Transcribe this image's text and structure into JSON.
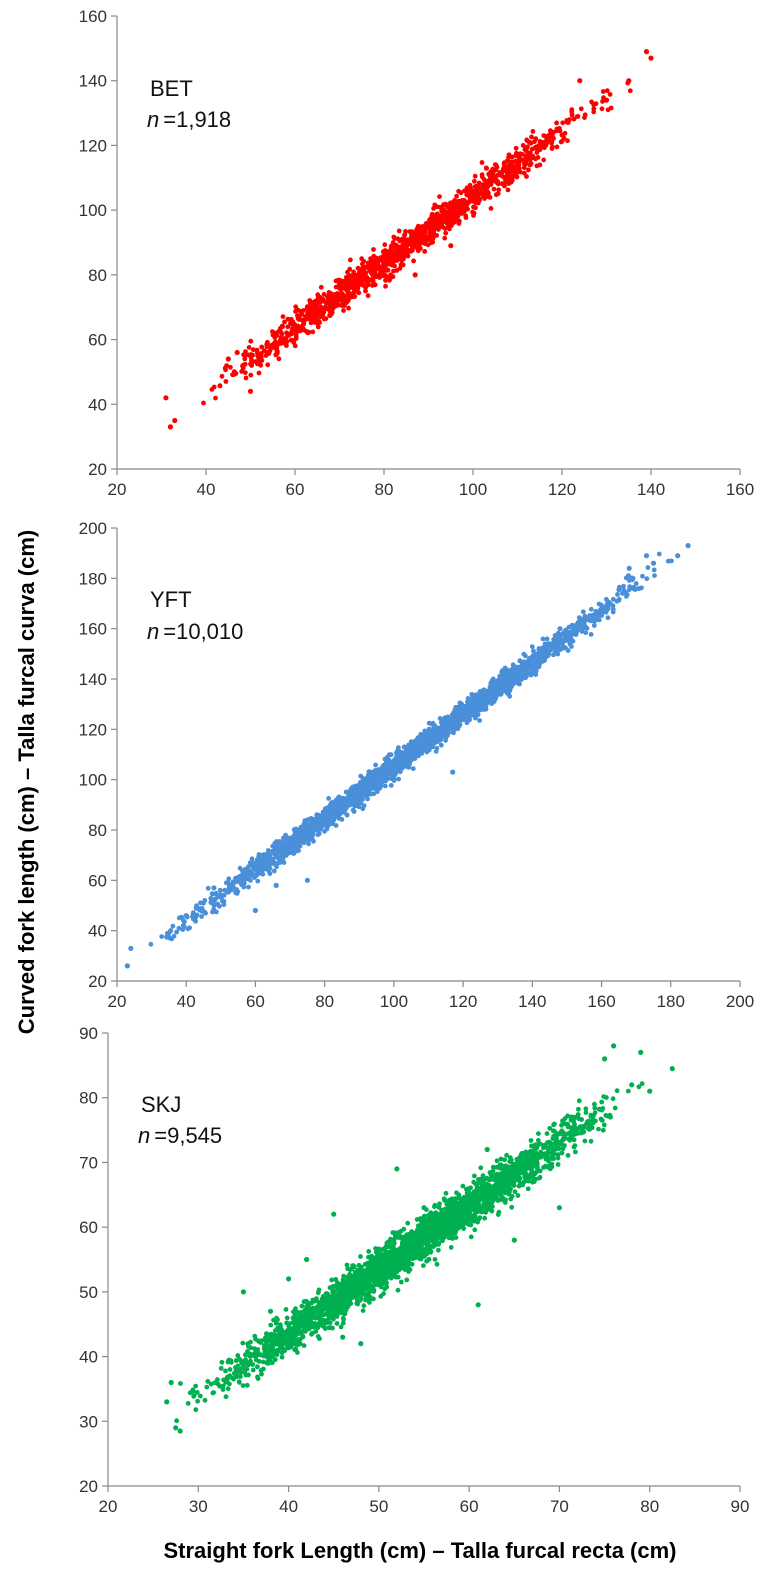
{
  "figure": {
    "ylabel": "Curved fork length (cm) – Talla furcal curva (cm)",
    "xlabel": "Straight fork Length (cm) – Talla furcal recta (cm)"
  },
  "chart_data": [
    {
      "type": "scatter",
      "species": "BET",
      "n_prefix": "n",
      "n_value": "=1,918",
      "color": "#ff0000",
      "xlim": [
        20,
        160
      ],
      "ylim": [
        20,
        160
      ],
      "xticks": [
        20,
        40,
        60,
        80,
        100,
        120,
        140,
        160
      ],
      "yticks": [
        20,
        40,
        60,
        80,
        100,
        120,
        140,
        160
      ],
      "grid": false,
      "trend": {
        "x": [
          31,
          140
        ],
        "y": [
          34,
          145
        ]
      },
      "spread": 2.2,
      "samples": 1300,
      "points": [
        [
          31,
          42
        ],
        [
          32,
          33
        ],
        [
          33,
          35
        ],
        [
          45,
          54
        ],
        [
          47,
          56
        ],
        [
          50,
          44
        ],
        [
          63,
          69
        ],
        [
          70,
          76
        ],
        [
          80,
          86
        ],
        [
          87,
          80
        ],
        [
          90,
          91
        ],
        [
          95,
          89
        ],
        [
          103,
          113
        ],
        [
          104,
          108
        ],
        [
          110,
          114
        ],
        [
          118,
          124
        ],
        [
          124,
          140
        ],
        [
          130,
          134
        ],
        [
          135,
          140
        ],
        [
          139,
          149
        ],
        [
          140,
          147
        ]
      ]
    },
    {
      "type": "scatter",
      "species": "YFT",
      "n_prefix": "n",
      "n_value": "=10,010",
      "color": "#4a8fd9",
      "xlim": [
        20,
        200
      ],
      "ylim": [
        20,
        200
      ],
      "xticks": [
        20,
        40,
        60,
        80,
        100,
        120,
        140,
        160,
        180,
        200
      ],
      "yticks": [
        20,
        40,
        60,
        80,
        100,
        120,
        140,
        160,
        180,
        200
      ],
      "grid": false,
      "trend": {
        "x": [
          23,
          185
        ],
        "y": [
          26,
          193
        ]
      },
      "spread": 2.0,
      "samples": 2600,
      "points": [
        [
          23,
          26
        ],
        [
          24,
          33
        ],
        [
          40,
          46
        ],
        [
          48,
          57
        ],
        [
          60,
          48
        ],
        [
          66,
          58
        ],
        [
          71,
          74
        ],
        [
          75,
          60
        ],
        [
          80,
          83
        ],
        [
          103,
          113
        ],
        [
          108,
          117
        ],
        [
          117,
          103
        ],
        [
          120,
          126
        ],
        [
          148,
          160
        ],
        [
          168,
          184
        ],
        [
          173,
          189
        ],
        [
          175,
          186
        ],
        [
          182,
          189
        ],
        [
          185,
          193
        ]
      ]
    },
    {
      "type": "scatter",
      "species": "SKJ",
      "n_prefix": "n",
      "n_value": "=9,545",
      "color": "#00b050",
      "xlim": [
        20,
        90
      ],
      "ylim": [
        20,
        90
      ],
      "xticks": [
        20,
        30,
        40,
        50,
        60,
        70,
        80,
        90
      ],
      "yticks": [
        20,
        30,
        40,
        50,
        60,
        70,
        80,
        90
      ],
      "grid": false,
      "trend": {
        "x": [
          26.5,
          80
        ],
        "y": [
          30,
          83
        ]
      },
      "spread": 1.4,
      "samples": 2800,
      "points": [
        [
          26.5,
          33
        ],
        [
          27,
          36
        ],
        [
          27.5,
          29
        ],
        [
          28,
          28.5
        ],
        [
          35,
          50
        ],
        [
          38,
          47
        ],
        [
          40,
          52
        ],
        [
          42,
          55
        ],
        [
          45,
          62
        ],
        [
          46,
          43
        ],
        [
          48,
          42
        ],
        [
          52,
          69
        ],
        [
          55,
          63
        ],
        [
          58,
          64
        ],
        [
          61,
          48
        ],
        [
          62,
          72
        ],
        [
          65,
          58
        ],
        [
          70,
          63
        ],
        [
          72,
          77
        ],
        [
          75,
          86
        ],
        [
          76,
          88
        ],
        [
          78,
          82
        ],
        [
          79,
          87
        ],
        [
          80,
          81
        ],
        [
          82.5,
          84.5
        ]
      ]
    }
  ]
}
